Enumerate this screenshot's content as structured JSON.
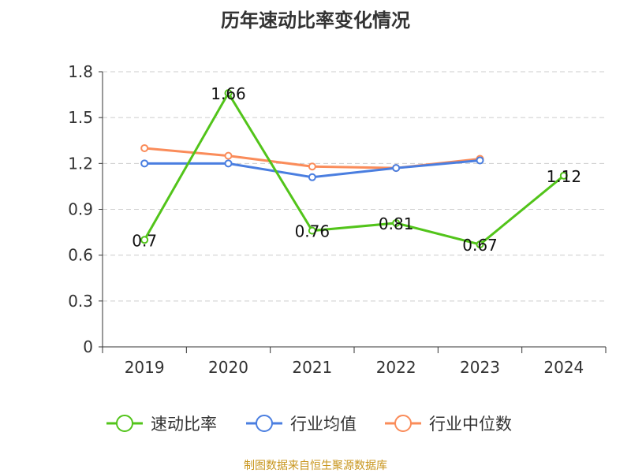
{
  "chart_data": {
    "type": "line",
    "title": "历年速动比率变化情况",
    "categories": [
      "2019",
      "2020",
      "2021",
      "2022",
      "2023",
      "2024"
    ],
    "ylim": [
      0,
      1.8
    ],
    "yticks": [
      "0",
      "0.3",
      "0.6",
      "0.9",
      "1.2",
      "1.5",
      "1.8"
    ],
    "grid": true,
    "legend_position": "bottom",
    "series": [
      {
        "name": "速动比率",
        "color": "#52c41a",
        "values": [
          0.7,
          1.66,
          0.76,
          0.81,
          0.67,
          1.12
        ],
        "labels": [
          "0.7",
          "1.66",
          "0.76",
          "0.81",
          "0.67",
          "1.12"
        ]
      },
      {
        "name": "行业均值",
        "color": "#4a7ee0",
        "values": [
          1.2,
          1.2,
          1.11,
          1.17,
          1.22,
          null
        ]
      },
      {
        "name": "行业中位数",
        "color": "#fa8c5a",
        "values": [
          1.3,
          1.25,
          1.18,
          1.17,
          1.23,
          null
        ]
      }
    ]
  },
  "source": "制图数据来自恒生聚源数据库"
}
